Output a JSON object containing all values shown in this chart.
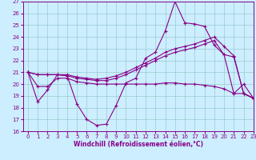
{
  "xlabel": "Windchill (Refroidissement éolien,°C)",
  "xlim": [
    -0.5,
    23
  ],
  "ylim": [
    16,
    27
  ],
  "xticks": [
    0,
    1,
    2,
    3,
    4,
    5,
    6,
    7,
    8,
    9,
    10,
    11,
    12,
    13,
    14,
    15,
    16,
    17,
    18,
    19,
    20,
    21,
    22,
    23
  ],
  "yticks": [
    16,
    17,
    18,
    19,
    20,
    21,
    22,
    23,
    24,
    25,
    26,
    27
  ],
  "line_color": "#880088",
  "bg_color": "#cceeff",
  "grid_color": "#99cccc",
  "lines": [
    {
      "x": [
        0,
        1,
        2,
        3,
        4,
        5,
        6,
        7,
        8,
        9,
        10,
        11,
        12,
        13,
        14,
        15,
        16,
        17,
        18,
        19,
        20,
        21,
        22,
        23
      ],
      "y": [
        21.0,
        18.5,
        19.5,
        20.8,
        20.7,
        18.3,
        17.0,
        16.5,
        16.6,
        18.2,
        20.1,
        20.5,
        22.2,
        22.7,
        24.5,
        27.0,
        25.2,
        25.1,
        24.9,
        23.3,
        22.5,
        19.2,
        20.0,
        18.8
      ]
    },
    {
      "x": [
        0,
        1,
        2,
        3,
        4,
        5,
        6,
        7,
        8,
        9,
        10,
        11,
        12,
        13,
        14,
        15,
        16,
        17,
        18,
        19,
        20,
        21,
        22,
        23
      ],
      "y": [
        21.0,
        20.8,
        20.8,
        20.8,
        20.8,
        20.6,
        20.5,
        20.4,
        20.5,
        20.7,
        21.0,
        21.4,
        21.8,
        22.2,
        22.7,
        23.0,
        23.2,
        23.4,
        23.7,
        24.0,
        23.2,
        22.4,
        19.2,
        18.8
      ]
    },
    {
      "x": [
        0,
        1,
        2,
        3,
        4,
        5,
        6,
        7,
        8,
        9,
        10,
        11,
        12,
        13,
        14,
        15,
        16,
        17,
        18,
        19,
        20,
        21,
        22,
        23
      ],
      "y": [
        21.0,
        20.8,
        20.8,
        20.8,
        20.7,
        20.5,
        20.4,
        20.3,
        20.3,
        20.5,
        20.8,
        21.2,
        21.6,
        22.0,
        22.4,
        22.7,
        22.9,
        23.1,
        23.4,
        23.7,
        22.5,
        22.3,
        19.2,
        18.8
      ]
    },
    {
      "x": [
        0,
        1,
        2,
        3,
        4,
        5,
        6,
        7,
        8,
        9,
        10,
        11,
        12,
        13,
        14,
        15,
        16,
        17,
        18,
        19,
        20,
        21,
        22,
        23
      ],
      "y": [
        21.0,
        19.8,
        19.8,
        20.5,
        20.5,
        20.2,
        20.1,
        20.0,
        20.0,
        20.0,
        20.0,
        20.0,
        20.0,
        20.0,
        20.1,
        20.1,
        20.0,
        20.0,
        19.9,
        19.8,
        19.6,
        19.2,
        19.2,
        18.8
      ]
    }
  ]
}
